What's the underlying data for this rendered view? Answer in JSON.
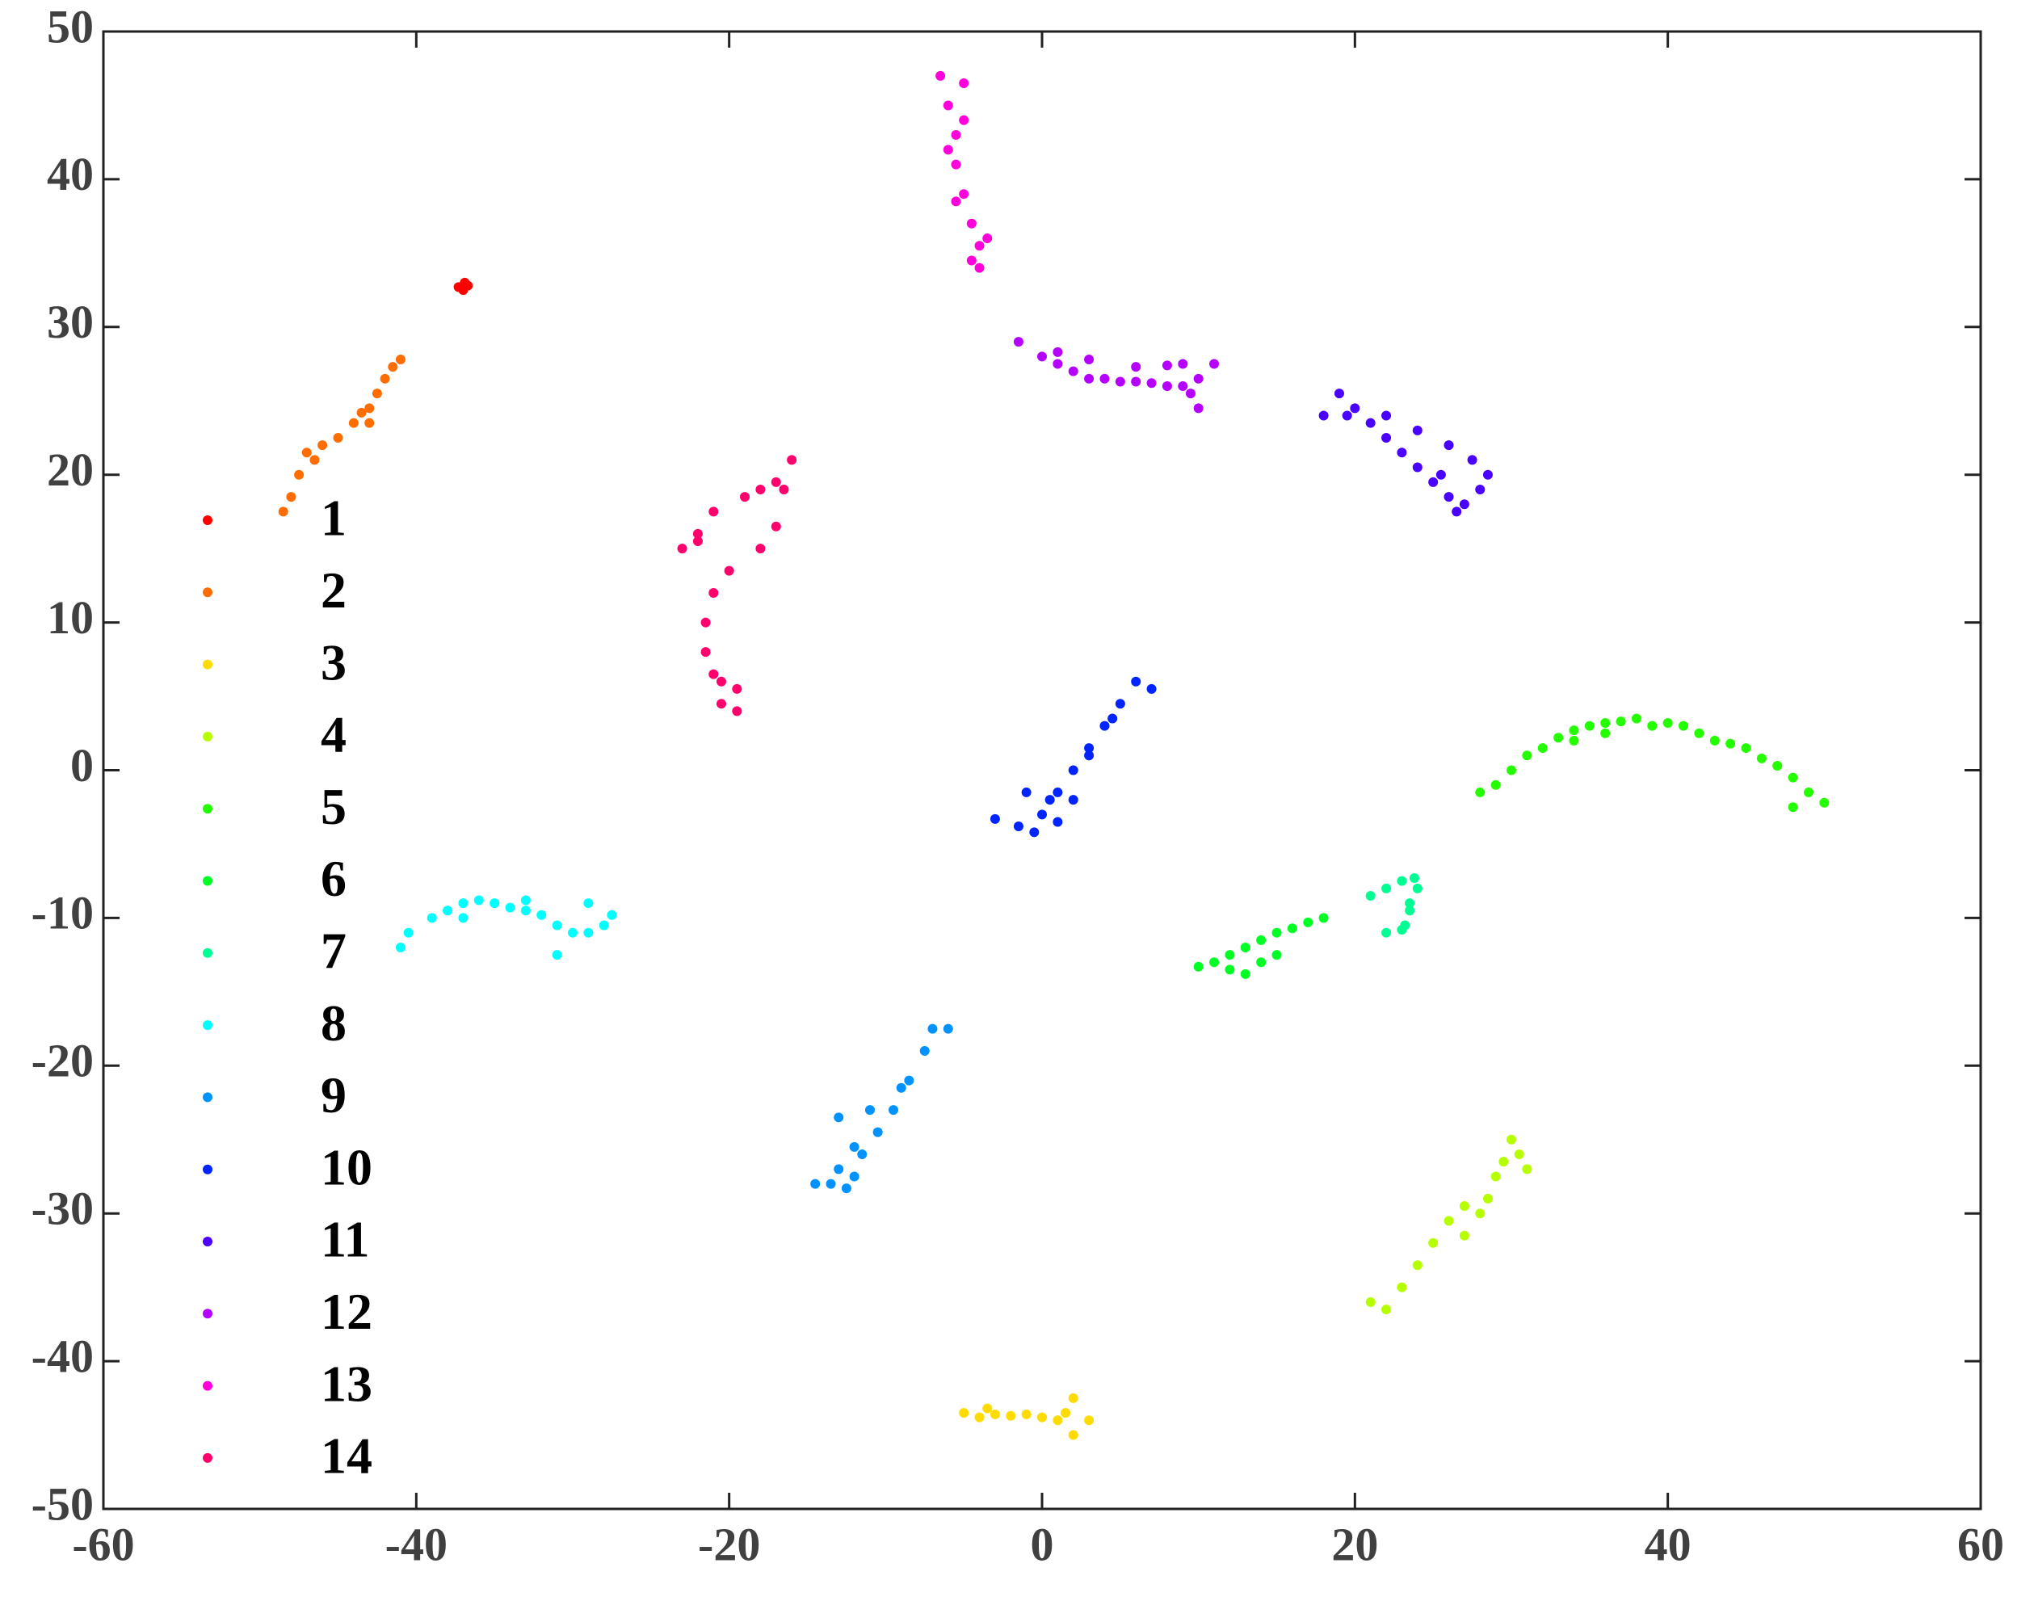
{
  "chart_data": {
    "type": "scatter",
    "legend": "left",
    "grid": false,
    "xlim": [
      -60,
      60
    ],
    "xticks": [
      -60,
      -40,
      -20,
      0,
      20,
      40,
      60
    ],
    "ylim": [
      -50,
      50
    ],
    "yticks": [
      -50,
      -40,
      -30,
      -20,
      -10,
      0,
      10,
      20,
      30,
      40,
      50
    ],
    "series": [
      {
        "name": "1",
        "color": "#ff0000",
        "x": [
          -37,
          -37.3,
          -36.7,
          -37,
          -36.9
        ],
        "y": [
          32.8,
          32.7,
          32.8,
          32.5,
          33
        ]
      },
      {
        "name": "2",
        "color": "#ff6d00",
        "x": [
          -48.5,
          -48,
          -47.5,
          -47,
          -46.5,
          -46,
          -45,
          -44,
          -43.5,
          -43,
          -43,
          -42.5,
          -42,
          -41.5,
          -41
        ],
        "y": [
          17.5,
          18.5,
          20,
          21.5,
          21,
          22,
          22.5,
          23.5,
          24.2,
          24.5,
          23.5,
          25.5,
          26.5,
          27.3,
          27.8
        ]
      },
      {
        "name": "3",
        "color": "#ffdb00",
        "x": [
          -5,
          -4,
          -3.5,
          -3,
          -2,
          -1,
          0,
          1,
          1.5,
          2,
          2,
          3
        ],
        "y": [
          -43.5,
          -43.8,
          -43.2,
          -43.6,
          -43.7,
          -43.6,
          -43.8,
          -44,
          -43.5,
          -42.5,
          -45,
          -44
        ]
      },
      {
        "name": "4",
        "color": "#b6ff00",
        "x": [
          21,
          22,
          23,
          24,
          25,
          26,
          27,
          27,
          28,
          28.5,
          29,
          29.5,
          30,
          30.5,
          31
        ],
        "y": [
          -36,
          -36.5,
          -35,
          -33.5,
          -32,
          -30.5,
          -29.5,
          -31.5,
          -30,
          -29,
          -27.5,
          -26.5,
          -25,
          -26,
          -27
        ]
      },
      {
        "name": "5",
        "color": "#24ff00",
        "x": [
          28,
          29,
          30,
          31,
          32,
          33,
          34,
          34,
          35,
          36,
          36,
          37,
          38,
          39,
          40,
          41,
          42,
          43,
          44,
          45,
          46,
          47,
          48,
          48,
          49,
          50
        ],
        "y": [
          -1.5,
          -1,
          0,
          1,
          1.5,
          2.2,
          2.7,
          2,
          3,
          3.2,
          2.5,
          3.3,
          3.5,
          3,
          3.2,
          3,
          2.5,
          2,
          1.8,
          1.5,
          0.8,
          0.3,
          -0.5,
          -2.5,
          -1.5,
          -2.2
        ]
      },
      {
        "name": "6",
        "color": "#00ff24",
        "x": [
          10,
          11,
          12,
          12,
          13,
          13,
          14,
          14,
          15,
          15,
          16,
          17,
          18
        ],
        "y": [
          -13.3,
          -13,
          -12.5,
          -13.5,
          -12,
          -13.8,
          -11.5,
          -13,
          -11,
          -12.5,
          -10.7,
          -10.3,
          -10
        ]
      },
      {
        "name": "7",
        "color": "#00ff92",
        "x": [
          21,
          22,
          23,
          23.8,
          24,
          23.5,
          23.5,
          23.2,
          23,
          22
        ],
        "y": [
          -8.5,
          -8,
          -7.5,
          -7.3,
          -8,
          -9,
          -9.5,
          -10.5,
          -10.8,
          -11
        ]
      },
      {
        "name": "8",
        "color": "#00ffff",
        "x": [
          -41,
          -40.5,
          -39,
          -38,
          -37,
          -37,
          -36,
          -35,
          -34,
          -33,
          -33,
          -32,
          -31,
          -31,
          -30,
          -29,
          -29,
          -28,
          -27.5
        ],
        "y": [
          -12,
          -11,
          -10,
          -9.5,
          -9,
          -10,
          -8.8,
          -9,
          -9.3,
          -9.5,
          -8.8,
          -9.8,
          -10.5,
          -12.5,
          -11,
          -11,
          -9,
          -10.5,
          -9.8
        ]
      },
      {
        "name": "9",
        "color": "#0092ff",
        "x": [
          -14.5,
          -13.5,
          -13,
          -13,
          -12.5,
          -12,
          -12,
          -11.5,
          -11,
          -10.5,
          -9.5,
          -9,
          -8.5,
          -7.5,
          -7,
          -6
        ],
        "y": [
          -28,
          -28,
          -27,
          -23.5,
          -28.3,
          -27.5,
          -25.5,
          -26,
          -23,
          -24.5,
          -23,
          -21.5,
          -21,
          -19,
          -17.5,
          -17.5
        ]
      },
      {
        "name": "10",
        "color": "#0024ff",
        "x": [
          -3,
          -1.5,
          -1,
          -0.5,
          0,
          0.5,
          1,
          1,
          2,
          2,
          3,
          3,
          4,
          4.5,
          5,
          6,
          7
        ],
        "y": [
          -3.3,
          -3.8,
          -1.5,
          -4.2,
          -3,
          -2,
          -1.5,
          -3.5,
          0,
          -2,
          1.5,
          1,
          3,
          3.5,
          4.5,
          6,
          5.5
        ]
      },
      {
        "name": "11",
        "color": "#4900ff",
        "x": [
          18,
          19,
          19.5,
          20,
          21,
          22,
          22,
          23,
          24,
          24,
          25,
          25.5,
          26,
          26,
          26.5,
          27,
          27.5,
          28,
          28.5
        ],
        "y": [
          24,
          25.5,
          24,
          24.5,
          23.5,
          22.5,
          24,
          21.5,
          20.5,
          23,
          19.5,
          20,
          18.5,
          22,
          17.5,
          18,
          21,
          19,
          20
        ]
      },
      {
        "name": "12",
        "color": "#b600ff",
        "x": [
          -1.5,
          0,
          1,
          1,
          2,
          3,
          3,
          4,
          5,
          6,
          6,
          7,
          8,
          8,
          9,
          9,
          9.5,
          10,
          10,
          11
        ],
        "y": [
          29,
          28,
          27.5,
          28.3,
          27,
          26.5,
          27.8,
          26.5,
          26.3,
          26.3,
          27.3,
          26.2,
          26,
          27.4,
          26,
          27.5,
          25.5,
          24.5,
          26.5,
          27.5
        ]
      },
      {
        "name": "13",
        "color": "#ff00db",
        "x": [
          -6.5,
          -6,
          -6,
          -5.5,
          -5.5,
          -5.5,
          -5,
          -5,
          -5,
          -4.5,
          -4.5,
          -4,
          -4,
          -3.5
        ],
        "y": [
          47,
          45,
          42,
          43,
          41,
          38.5,
          46.5,
          44,
          39,
          37,
          34.5,
          35.5,
          34,
          36
        ]
      },
      {
        "name": "14",
        "color": "#ff006d",
        "x": [
          -23,
          -22,
          -22,
          -21,
          -21,
          -21,
          -21.5,
          -21.5,
          -20.5,
          -20.5,
          -20,
          -19.5,
          -19.5,
          -19,
          -18,
          -18,
          -17,
          -17,
          -16.5,
          -16
        ],
        "y": [
          15,
          16,
          15.5,
          17.5,
          12,
          6.5,
          10,
          8,
          6,
          4.5,
          13.5,
          5.5,
          4,
          18.5,
          15,
          19,
          19.5,
          16.5,
          19,
          21
        ]
      }
    ]
  }
}
